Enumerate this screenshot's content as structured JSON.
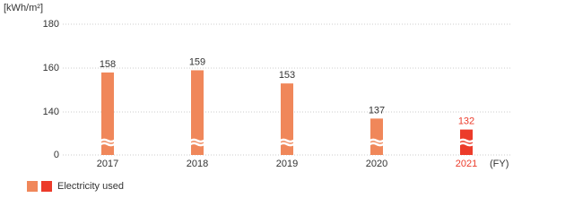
{
  "chart_data": {
    "type": "bar",
    "unit_label": "[kWh/m²]",
    "x_unit_label": "(FY)",
    "categories": [
      "2017",
      "2018",
      "2019",
      "2020",
      "2021"
    ],
    "series": [
      {
        "name": "Electricity used",
        "values": [
          158,
          159,
          153,
          137,
          132
        ],
        "colors": [
          "#f0875a",
          "#f0875a",
          "#f0875a",
          "#f0875a",
          "#ec3b2a"
        ],
        "text_colors": [
          "#333333",
          "#333333",
          "#333333",
          "#333333",
          "#ec3b2a"
        ]
      }
    ],
    "ylim": [
      0,
      180
    ],
    "yticks": [
      0,
      140,
      160,
      180
    ],
    "axis_break": true,
    "grid": true
  }
}
